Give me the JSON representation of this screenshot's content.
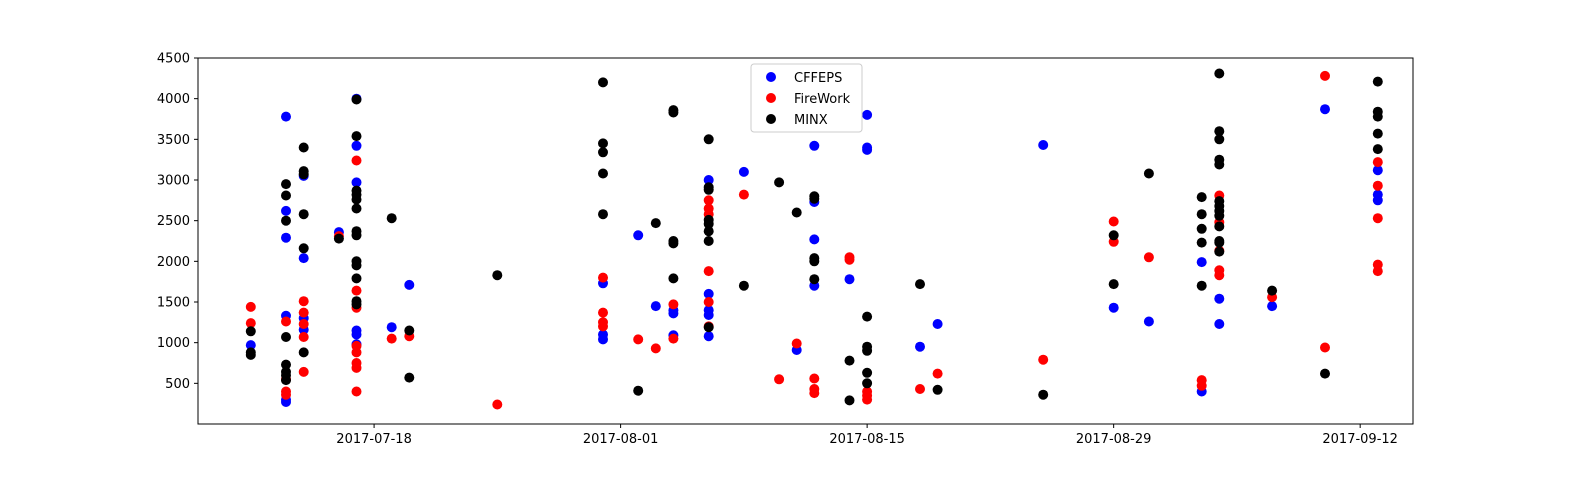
{
  "chart_data": {
    "type": "scatter",
    "title": "",
    "xlabel": "",
    "ylabel": "",
    "x_axis": {
      "type": "date",
      "min": "2017-07-08",
      "max": "2017-09-15",
      "ticks": [
        "2017-07-18",
        "2017-08-01",
        "2017-08-15",
        "2017-08-29",
        "2017-09-12"
      ]
    },
    "y_axis": {
      "min": 0,
      "max": 4500,
      "ticks": [
        500,
        1000,
        1500,
        2000,
        2500,
        3000,
        3500,
        4000,
        4500
      ]
    },
    "grid": false,
    "legend": {
      "placement": "top-center",
      "entries": [
        "CFFEPS",
        "FireWork",
        "MINX"
      ]
    },
    "series": [
      {
        "name": "CFFEPS",
        "color": "#0000ff",
        "points": [
          [
            "2017-07-11",
            970
          ],
          [
            "2017-07-13",
            3780
          ],
          [
            "2017-07-13",
            2620
          ],
          [
            "2017-07-13",
            2290
          ],
          [
            "2017-07-13",
            1330
          ],
          [
            "2017-07-13",
            300
          ],
          [
            "2017-07-13",
            270
          ],
          [
            "2017-07-14",
            3050
          ],
          [
            "2017-07-14",
            2040
          ],
          [
            "2017-07-14",
            1300
          ],
          [
            "2017-07-14",
            1160
          ],
          [
            "2017-07-16",
            2360
          ],
          [
            "2017-07-17",
            4000
          ],
          [
            "2017-07-17",
            3420
          ],
          [
            "2017-07-17",
            2970
          ],
          [
            "2017-07-17",
            1150
          ],
          [
            "2017-07-17",
            1100
          ],
          [
            "2017-07-17",
            980
          ],
          [
            "2017-07-19",
            1190
          ],
          [
            "2017-07-20",
            1710
          ],
          [
            "2017-07-31",
            1730
          ],
          [
            "2017-07-31",
            1100
          ],
          [
            "2017-07-31",
            1040
          ],
          [
            "2017-08-02",
            2320
          ],
          [
            "2017-08-03",
            1450
          ],
          [
            "2017-08-04",
            1400
          ],
          [
            "2017-08-04",
            1360
          ],
          [
            "2017-08-04",
            1090
          ],
          [
            "2017-08-06",
            3000
          ],
          [
            "2017-08-06",
            1600
          ],
          [
            "2017-08-06",
            1400
          ],
          [
            "2017-08-06",
            1340
          ],
          [
            "2017-08-06",
            1080
          ],
          [
            "2017-08-08",
            3100
          ],
          [
            "2017-08-11",
            910
          ],
          [
            "2017-08-12",
            3420
          ],
          [
            "2017-08-12",
            2730
          ],
          [
            "2017-08-12",
            2270
          ],
          [
            "2017-08-12",
            1700
          ],
          [
            "2017-08-14",
            1780
          ],
          [
            "2017-08-15",
            3800
          ],
          [
            "2017-08-15",
            3400
          ],
          [
            "2017-08-15",
            3370
          ],
          [
            "2017-08-18",
            950
          ],
          [
            "2017-08-19",
            1230
          ],
          [
            "2017-08-25",
            3430
          ],
          [
            "2017-08-29",
            1430
          ],
          [
            "2017-08-31",
            1260
          ],
          [
            "2017-09-03",
            1990
          ],
          [
            "2017-09-03",
            400
          ],
          [
            "2017-09-04",
            1540
          ],
          [
            "2017-09-04",
            1230
          ],
          [
            "2017-09-07",
            1450
          ],
          [
            "2017-09-10",
            3870
          ],
          [
            "2017-09-13",
            3120
          ],
          [
            "2017-09-13",
            2820
          ],
          [
            "2017-09-13",
            2750
          ]
        ]
      },
      {
        "name": "FireWork",
        "color": "#ff0000",
        "points": [
          [
            "2017-07-11",
            1440
          ],
          [
            "2017-07-11",
            1240
          ],
          [
            "2017-07-13",
            1260
          ],
          [
            "2017-07-13",
            550
          ],
          [
            "2017-07-13",
            400
          ],
          [
            "2017-07-13",
            360
          ],
          [
            "2017-07-14",
            1510
          ],
          [
            "2017-07-14",
            1370
          ],
          [
            "2017-07-14",
            1230
          ],
          [
            "2017-07-14",
            1070
          ],
          [
            "2017-07-14",
            640
          ],
          [
            "2017-07-16",
            2310
          ],
          [
            "2017-07-17",
            3240
          ],
          [
            "2017-07-17",
            1640
          ],
          [
            "2017-07-17",
            1430
          ],
          [
            "2017-07-17",
            960
          ],
          [
            "2017-07-17",
            880
          ],
          [
            "2017-07-17",
            750
          ],
          [
            "2017-07-17",
            690
          ],
          [
            "2017-07-17",
            400
          ],
          [
            "2017-07-19",
            1050
          ],
          [
            "2017-07-20",
            1080
          ],
          [
            "2017-07-25",
            240
          ],
          [
            "2017-07-31",
            1800
          ],
          [
            "2017-07-31",
            1370
          ],
          [
            "2017-07-31",
            1250
          ],
          [
            "2017-07-31",
            1200
          ],
          [
            "2017-08-02",
            1040
          ],
          [
            "2017-08-03",
            930
          ],
          [
            "2017-08-04",
            1470
          ],
          [
            "2017-08-04",
            1050
          ],
          [
            "2017-08-06",
            2750
          ],
          [
            "2017-08-06",
            2650
          ],
          [
            "2017-08-06",
            2580
          ],
          [
            "2017-08-06",
            1880
          ],
          [
            "2017-08-06",
            1500
          ],
          [
            "2017-08-06",
            1200
          ],
          [
            "2017-08-08",
            2820
          ],
          [
            "2017-08-10",
            550
          ],
          [
            "2017-08-11",
            990
          ],
          [
            "2017-08-12",
            560
          ],
          [
            "2017-08-12",
            430
          ],
          [
            "2017-08-12",
            380
          ],
          [
            "2017-08-14",
            2050
          ],
          [
            "2017-08-14",
            2020
          ],
          [
            "2017-08-15",
            400
          ],
          [
            "2017-08-15",
            350
          ],
          [
            "2017-08-15",
            300
          ],
          [
            "2017-08-18",
            430
          ],
          [
            "2017-08-19",
            620
          ],
          [
            "2017-08-25",
            790
          ],
          [
            "2017-08-29",
            2490
          ],
          [
            "2017-08-29",
            2240
          ],
          [
            "2017-08-31",
            2050
          ],
          [
            "2017-09-03",
            540
          ],
          [
            "2017-09-03",
            470
          ],
          [
            "2017-09-04",
            2810
          ],
          [
            "2017-09-04",
            2480
          ],
          [
            "2017-09-04",
            2130
          ],
          [
            "2017-09-04",
            1890
          ],
          [
            "2017-09-04",
            1830
          ],
          [
            "2017-09-07",
            1560
          ],
          [
            "2017-09-10",
            4280
          ],
          [
            "2017-09-10",
            940
          ],
          [
            "2017-09-13",
            3220
          ],
          [
            "2017-09-13",
            2930
          ],
          [
            "2017-09-13",
            2530
          ],
          [
            "2017-09-13",
            1960
          ],
          [
            "2017-09-13",
            1880
          ]
        ]
      },
      {
        "name": "MINX",
        "color": "#000000",
        "points": [
          [
            "2017-07-11",
            1140
          ],
          [
            "2017-07-11",
            880
          ],
          [
            "2017-07-11",
            850
          ],
          [
            "2017-07-13",
            2950
          ],
          [
            "2017-07-13",
            2810
          ],
          [
            "2017-07-13",
            2500
          ],
          [
            "2017-07-13",
            1070
          ],
          [
            "2017-07-13",
            730
          ],
          [
            "2017-07-13",
            640
          ],
          [
            "2017-07-13",
            600
          ],
          [
            "2017-07-13",
            540
          ],
          [
            "2017-07-14",
            3400
          ],
          [
            "2017-07-14",
            3110
          ],
          [
            "2017-07-14",
            3070
          ],
          [
            "2017-07-14",
            2580
          ],
          [
            "2017-07-14",
            2160
          ],
          [
            "2017-07-14",
            880
          ],
          [
            "2017-07-16",
            2280
          ],
          [
            "2017-07-17",
            3990
          ],
          [
            "2017-07-17",
            3540
          ],
          [
            "2017-07-17",
            2870
          ],
          [
            "2017-07-17",
            2820
          ],
          [
            "2017-07-17",
            2760
          ],
          [
            "2017-07-17",
            2650
          ],
          [
            "2017-07-17",
            2370
          ],
          [
            "2017-07-17",
            2320
          ],
          [
            "2017-07-17",
            2000
          ],
          [
            "2017-07-17",
            1950
          ],
          [
            "2017-07-17",
            1790
          ],
          [
            "2017-07-17",
            1510
          ],
          [
            "2017-07-17",
            1470
          ],
          [
            "2017-07-19",
            2530
          ],
          [
            "2017-07-20",
            1150
          ],
          [
            "2017-07-20",
            570
          ],
          [
            "2017-07-25",
            1830
          ],
          [
            "2017-07-31",
            4200
          ],
          [
            "2017-07-31",
            3450
          ],
          [
            "2017-07-31",
            3340
          ],
          [
            "2017-07-31",
            3080
          ],
          [
            "2017-07-31",
            2580
          ],
          [
            "2017-08-02",
            410
          ],
          [
            "2017-08-03",
            2470
          ],
          [
            "2017-08-04",
            3860
          ],
          [
            "2017-08-04",
            3830
          ],
          [
            "2017-08-04",
            2250
          ],
          [
            "2017-08-04",
            2220
          ],
          [
            "2017-08-04",
            1790
          ],
          [
            "2017-08-06",
            3500
          ],
          [
            "2017-08-06",
            2910
          ],
          [
            "2017-08-06",
            2880
          ],
          [
            "2017-08-06",
            2510
          ],
          [
            "2017-08-06",
            2460
          ],
          [
            "2017-08-06",
            2370
          ],
          [
            "2017-08-06",
            2250
          ],
          [
            "2017-08-06",
            1190
          ],
          [
            "2017-08-08",
            1700
          ],
          [
            "2017-08-10",
            2970
          ],
          [
            "2017-08-11",
            2600
          ],
          [
            "2017-08-12",
            2800
          ],
          [
            "2017-08-12",
            2770
          ],
          [
            "2017-08-12",
            2040
          ],
          [
            "2017-08-12",
            2000
          ],
          [
            "2017-08-12",
            1780
          ],
          [
            "2017-08-14",
            780
          ],
          [
            "2017-08-14",
            290
          ],
          [
            "2017-08-15",
            1320
          ],
          [
            "2017-08-15",
            950
          ],
          [
            "2017-08-15",
            900
          ],
          [
            "2017-08-15",
            630
          ],
          [
            "2017-08-15",
            500
          ],
          [
            "2017-08-18",
            1720
          ],
          [
            "2017-08-19",
            420
          ],
          [
            "2017-08-25",
            360
          ],
          [
            "2017-08-29",
            2320
          ],
          [
            "2017-08-29",
            1720
          ],
          [
            "2017-08-31",
            3080
          ],
          [
            "2017-09-03",
            2790
          ],
          [
            "2017-09-03",
            2580
          ],
          [
            "2017-09-03",
            2400
          ],
          [
            "2017-09-03",
            2230
          ],
          [
            "2017-09-03",
            1700
          ],
          [
            "2017-09-04",
            4310
          ],
          [
            "2017-09-04",
            3600
          ],
          [
            "2017-09-04",
            3500
          ],
          [
            "2017-09-04",
            3250
          ],
          [
            "2017-09-04",
            3190
          ],
          [
            "2017-09-04",
            2740
          ],
          [
            "2017-09-04",
            2680
          ],
          [
            "2017-09-04",
            2620
          ],
          [
            "2017-09-04",
            2560
          ],
          [
            "2017-09-04",
            2430
          ],
          [
            "2017-09-04",
            2250
          ],
          [
            "2017-09-04",
            2230
          ],
          [
            "2017-09-04",
            2120
          ],
          [
            "2017-09-07",
            1640
          ],
          [
            "2017-09-10",
            620
          ],
          [
            "2017-09-13",
            4210
          ],
          [
            "2017-09-13",
            3840
          ],
          [
            "2017-09-13",
            3780
          ],
          [
            "2017-09-13",
            3570
          ],
          [
            "2017-09-13",
            3380
          ]
        ]
      }
    ]
  }
}
